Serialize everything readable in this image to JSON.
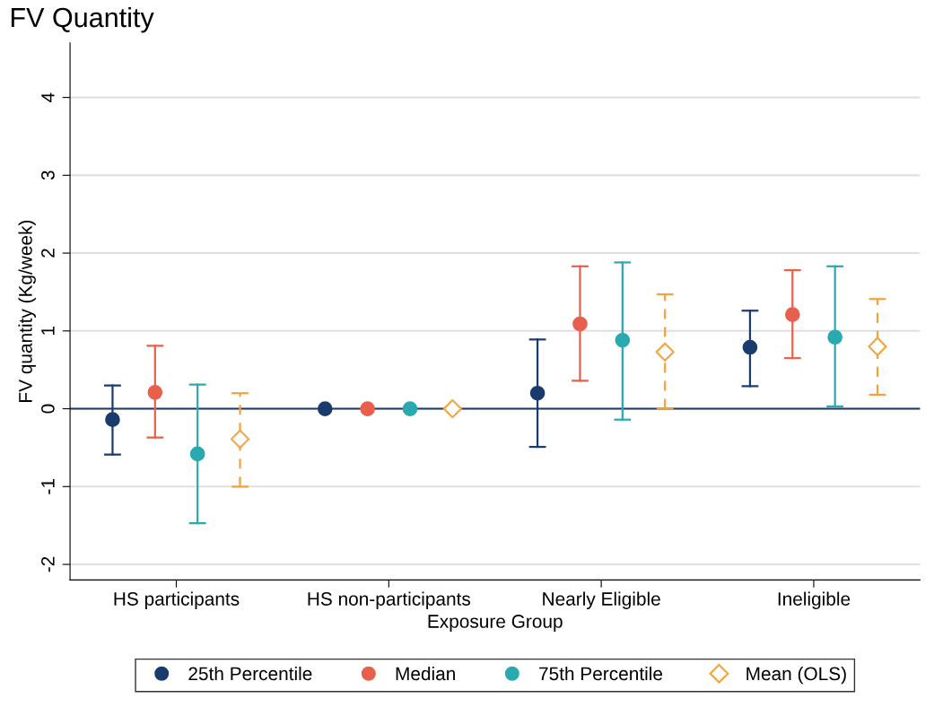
{
  "chart_data": {
    "type": "scatter",
    "title": "FV Quantity",
    "xlabel": "Exposure Group",
    "ylabel": "FV quantity (Kg/week)",
    "categories": [
      "HS participants",
      "HS non-participants",
      "Nearly Eligible",
      "Ineligible"
    ],
    "series": [
      {
        "name": "25th Percentile",
        "color": "#1a3b6e",
        "marker": "circle",
        "line_style": "solid",
        "values": [
          -0.14,
          0,
          0.2,
          0.79
        ],
        "errors": [
          [
            -0.59,
            0.3
          ],
          null,
          [
            -0.49,
            0.89
          ],
          [
            0.29,
            1.26
          ]
        ]
      },
      {
        "name": "Median",
        "color": "#e8604c",
        "marker": "circle",
        "line_style": "solid",
        "values": [
          0.21,
          0,
          1.09,
          1.21
        ],
        "errors": [
          [
            -0.37,
            0.81
          ],
          null,
          [
            0.36,
            1.83
          ],
          [
            0.65,
            1.78
          ]
        ]
      },
      {
        "name": "75th Percentile",
        "color": "#2aa9b0",
        "marker": "circle",
        "line_style": "solid",
        "values": [
          -0.58,
          0,
          0.88,
          0.92
        ],
        "errors": [
          [
            -1.47,
            0.31
          ],
          null,
          [
            -0.14,
            1.88
          ],
          [
            0.03,
            1.83
          ]
        ]
      },
      {
        "name": "Mean (OLS)",
        "color": "#f4a23d",
        "marker": "diamond",
        "line_style": "dashed",
        "values": [
          -0.39,
          0,
          0.73,
          0.8
        ],
        "errors": [
          [
            -1.0,
            0.2
          ],
          null,
          [
            0.0,
            1.47
          ],
          [
            0.18,
            1.41
          ]
        ]
      }
    ],
    "ylim": [
      -2.2,
      4.7
    ],
    "yticks": [
      -2,
      -1,
      0,
      1,
      2,
      3,
      4
    ],
    "grid": "y",
    "legend": "bottom",
    "ref_lines": [
      {
        "axis": "y",
        "value": 0,
        "label": null,
        "color": "#1a3b6e",
        "line_style": "solid"
      }
    ]
  }
}
